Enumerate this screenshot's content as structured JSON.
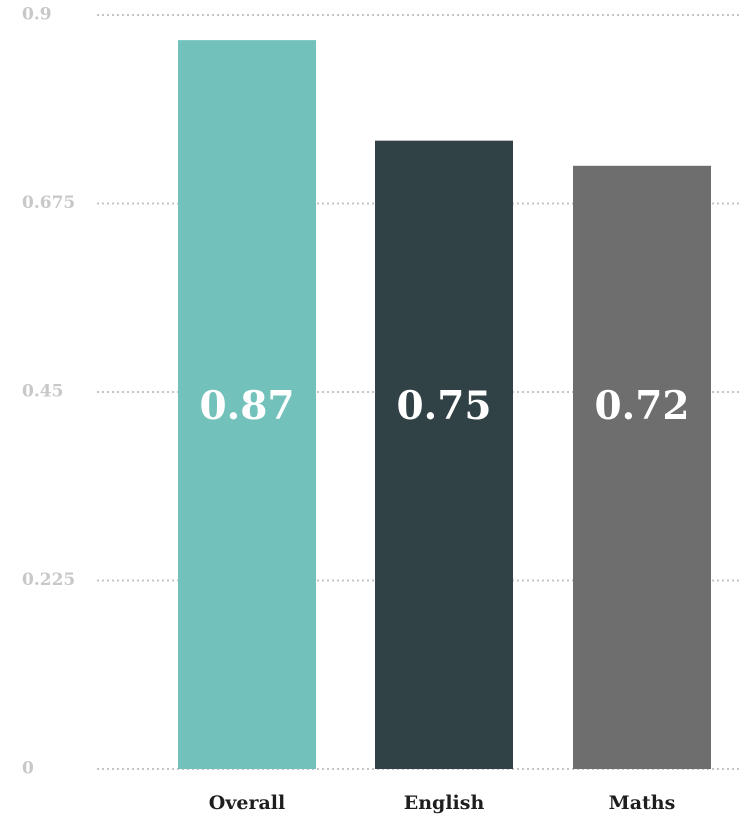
{
  "chart_data": {
    "type": "bar",
    "categories": [
      "Overall",
      "English",
      "Maths"
    ],
    "values": [
      0.87,
      0.75,
      0.72
    ],
    "value_labels": [
      "0.87",
      "0.75",
      "0.72"
    ],
    "colors": [
      "#72c2bb",
      "#304245",
      "#6e6e6e"
    ],
    "y_ticks": [
      0,
      0.225,
      0.45,
      0.675,
      0.9
    ],
    "y_tick_labels": [
      "0",
      "0.225",
      "0.45",
      "0.675",
      "0.9"
    ],
    "ylim": [
      0,
      0.9
    ],
    "grid": true,
    "grid_style": "dotted",
    "legend": false
  }
}
